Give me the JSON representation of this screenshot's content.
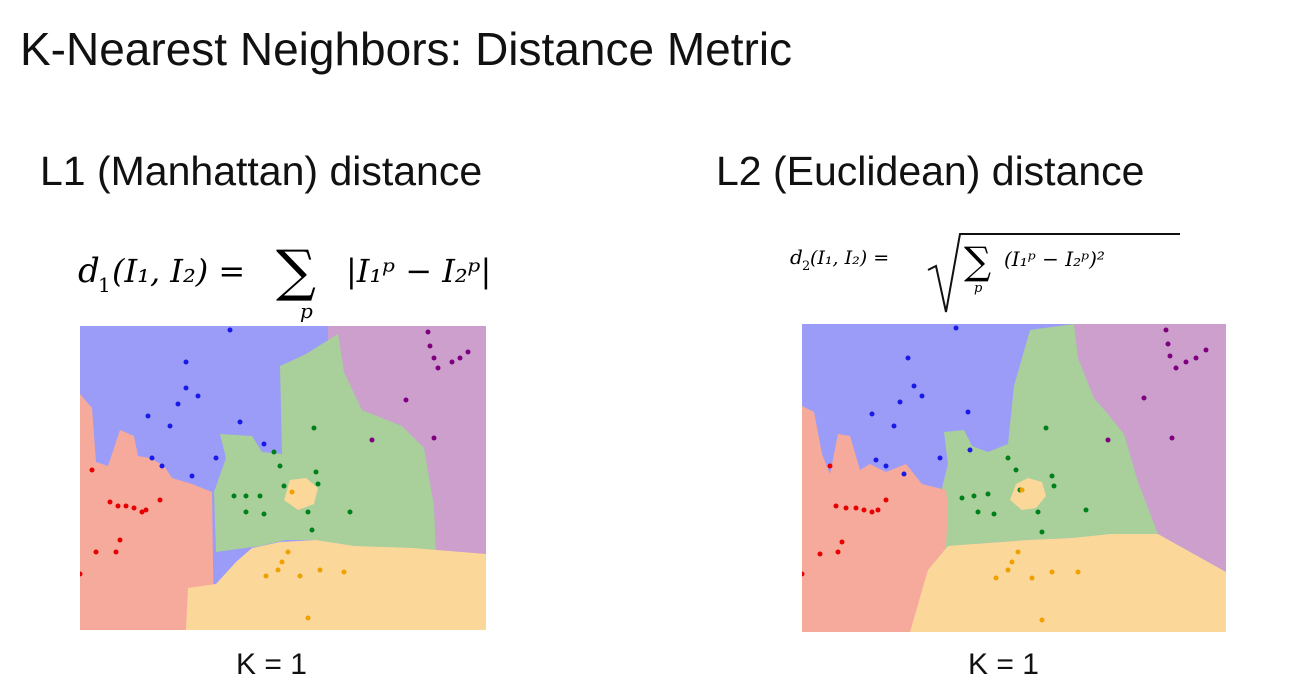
{
  "title": "K-Nearest Neighbors: Distance Metric",
  "left": {
    "subtitle": "L1 (Manhattan) distance",
    "formula": {
      "lhs": "d",
      "lhs_sub": "1",
      "args": "(I₁, I₂) =",
      "sum": "∑",
      "sum_index": "p",
      "term": "|I₁ᵖ − I₂ᵖ|"
    },
    "k_label": "K = 1"
  },
  "right": {
    "subtitle": "L2 (Euclidean) distance",
    "formula": {
      "lhs": "d",
      "lhs_sub": "2",
      "args": "(I₁, I₂) =",
      "sum": "∑",
      "sum_index": "p",
      "term": "(I₁ᵖ − I₂ᵖ)²"
    },
    "k_label": "K = 1"
  },
  "colors": {
    "region_blue": "#9b9cf7",
    "region_purple": "#cd9fcd",
    "region_green": "#a9cf9b",
    "region_red": "#f6aa9c",
    "region_orange": "#fbd899",
    "point_blue": "#1a1ae6",
    "point_purple": "#7f007f",
    "point_green": "#00801a",
    "point_red": "#e60000",
    "point_orange": "#f0a000"
  }
}
